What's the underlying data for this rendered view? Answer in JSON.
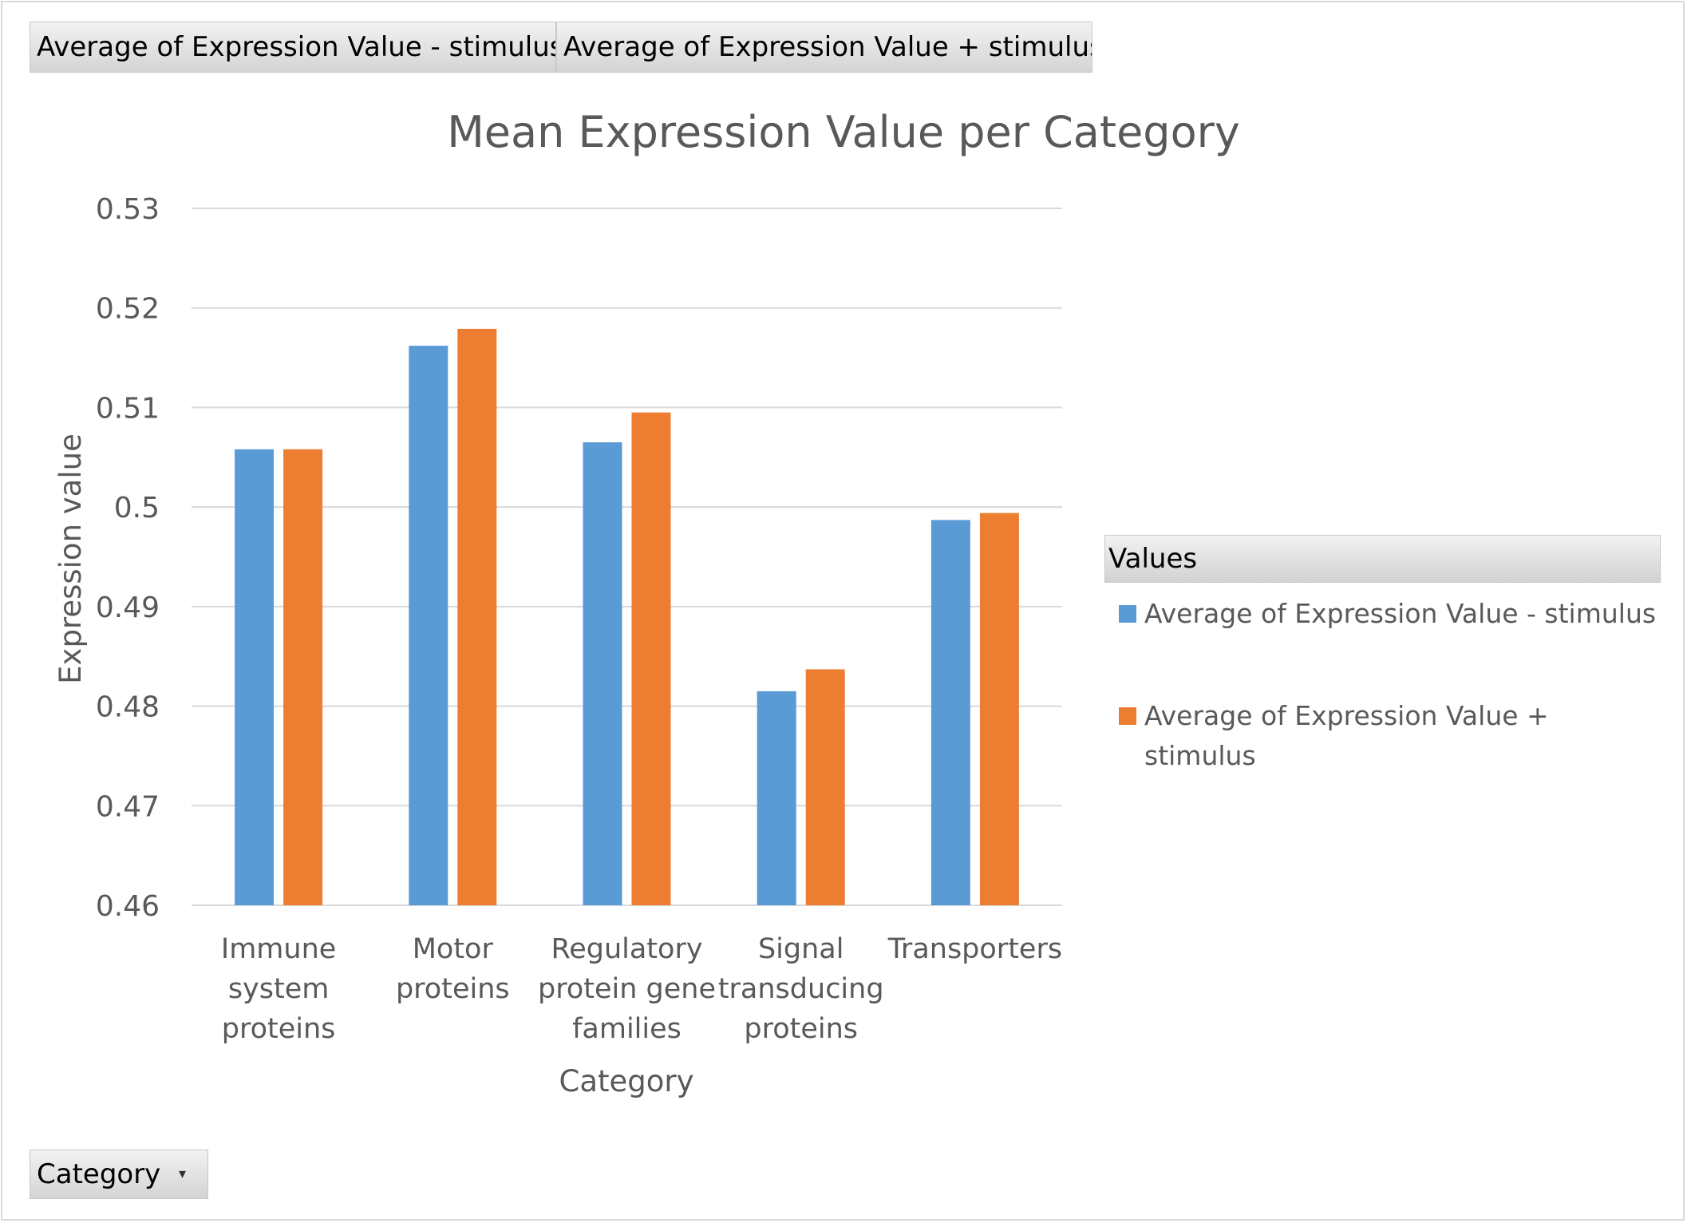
{
  "pivot": {
    "value_fields": [
      "Average of Expression Value - stimulus",
      "Average of Expression Value + stimulus"
    ],
    "axis_field": "Category",
    "legend_header": "Values"
  },
  "colors": {
    "series_minus": "#5b9bd5",
    "series_plus": "#ed7d31",
    "gridline": "#d9d9d9",
    "text": "#595959"
  },
  "chart_data": {
    "type": "bar",
    "title": "Mean Expression Value per Category",
    "xlabel": "Category",
    "ylabel": "Expression value",
    "ylim": [
      0.46,
      0.53
    ],
    "yticks": [
      "0.46",
      "0.47",
      "0.48",
      "0.49",
      "0.5",
      "0.51",
      "0.52",
      "0.53"
    ],
    "grid": true,
    "legend_position": "right",
    "categories": [
      [
        "Immune",
        "system",
        "proteins"
      ],
      [
        "Motor",
        "proteins"
      ],
      [
        "Regulatory",
        "protein gene",
        "families"
      ],
      [
        "Signal",
        "transducing",
        "proteins"
      ],
      [
        "Transporters"
      ]
    ],
    "series": [
      {
        "name": "Average of Expression Value - stimulus",
        "values": [
          0.5058,
          0.5162,
          0.5065,
          0.4815,
          0.4987
        ]
      },
      {
        "name": "Average of Expression Value + stimulus",
        "values": [
          0.5058,
          0.5179,
          0.5095,
          0.4837,
          0.4994
        ]
      }
    ]
  }
}
